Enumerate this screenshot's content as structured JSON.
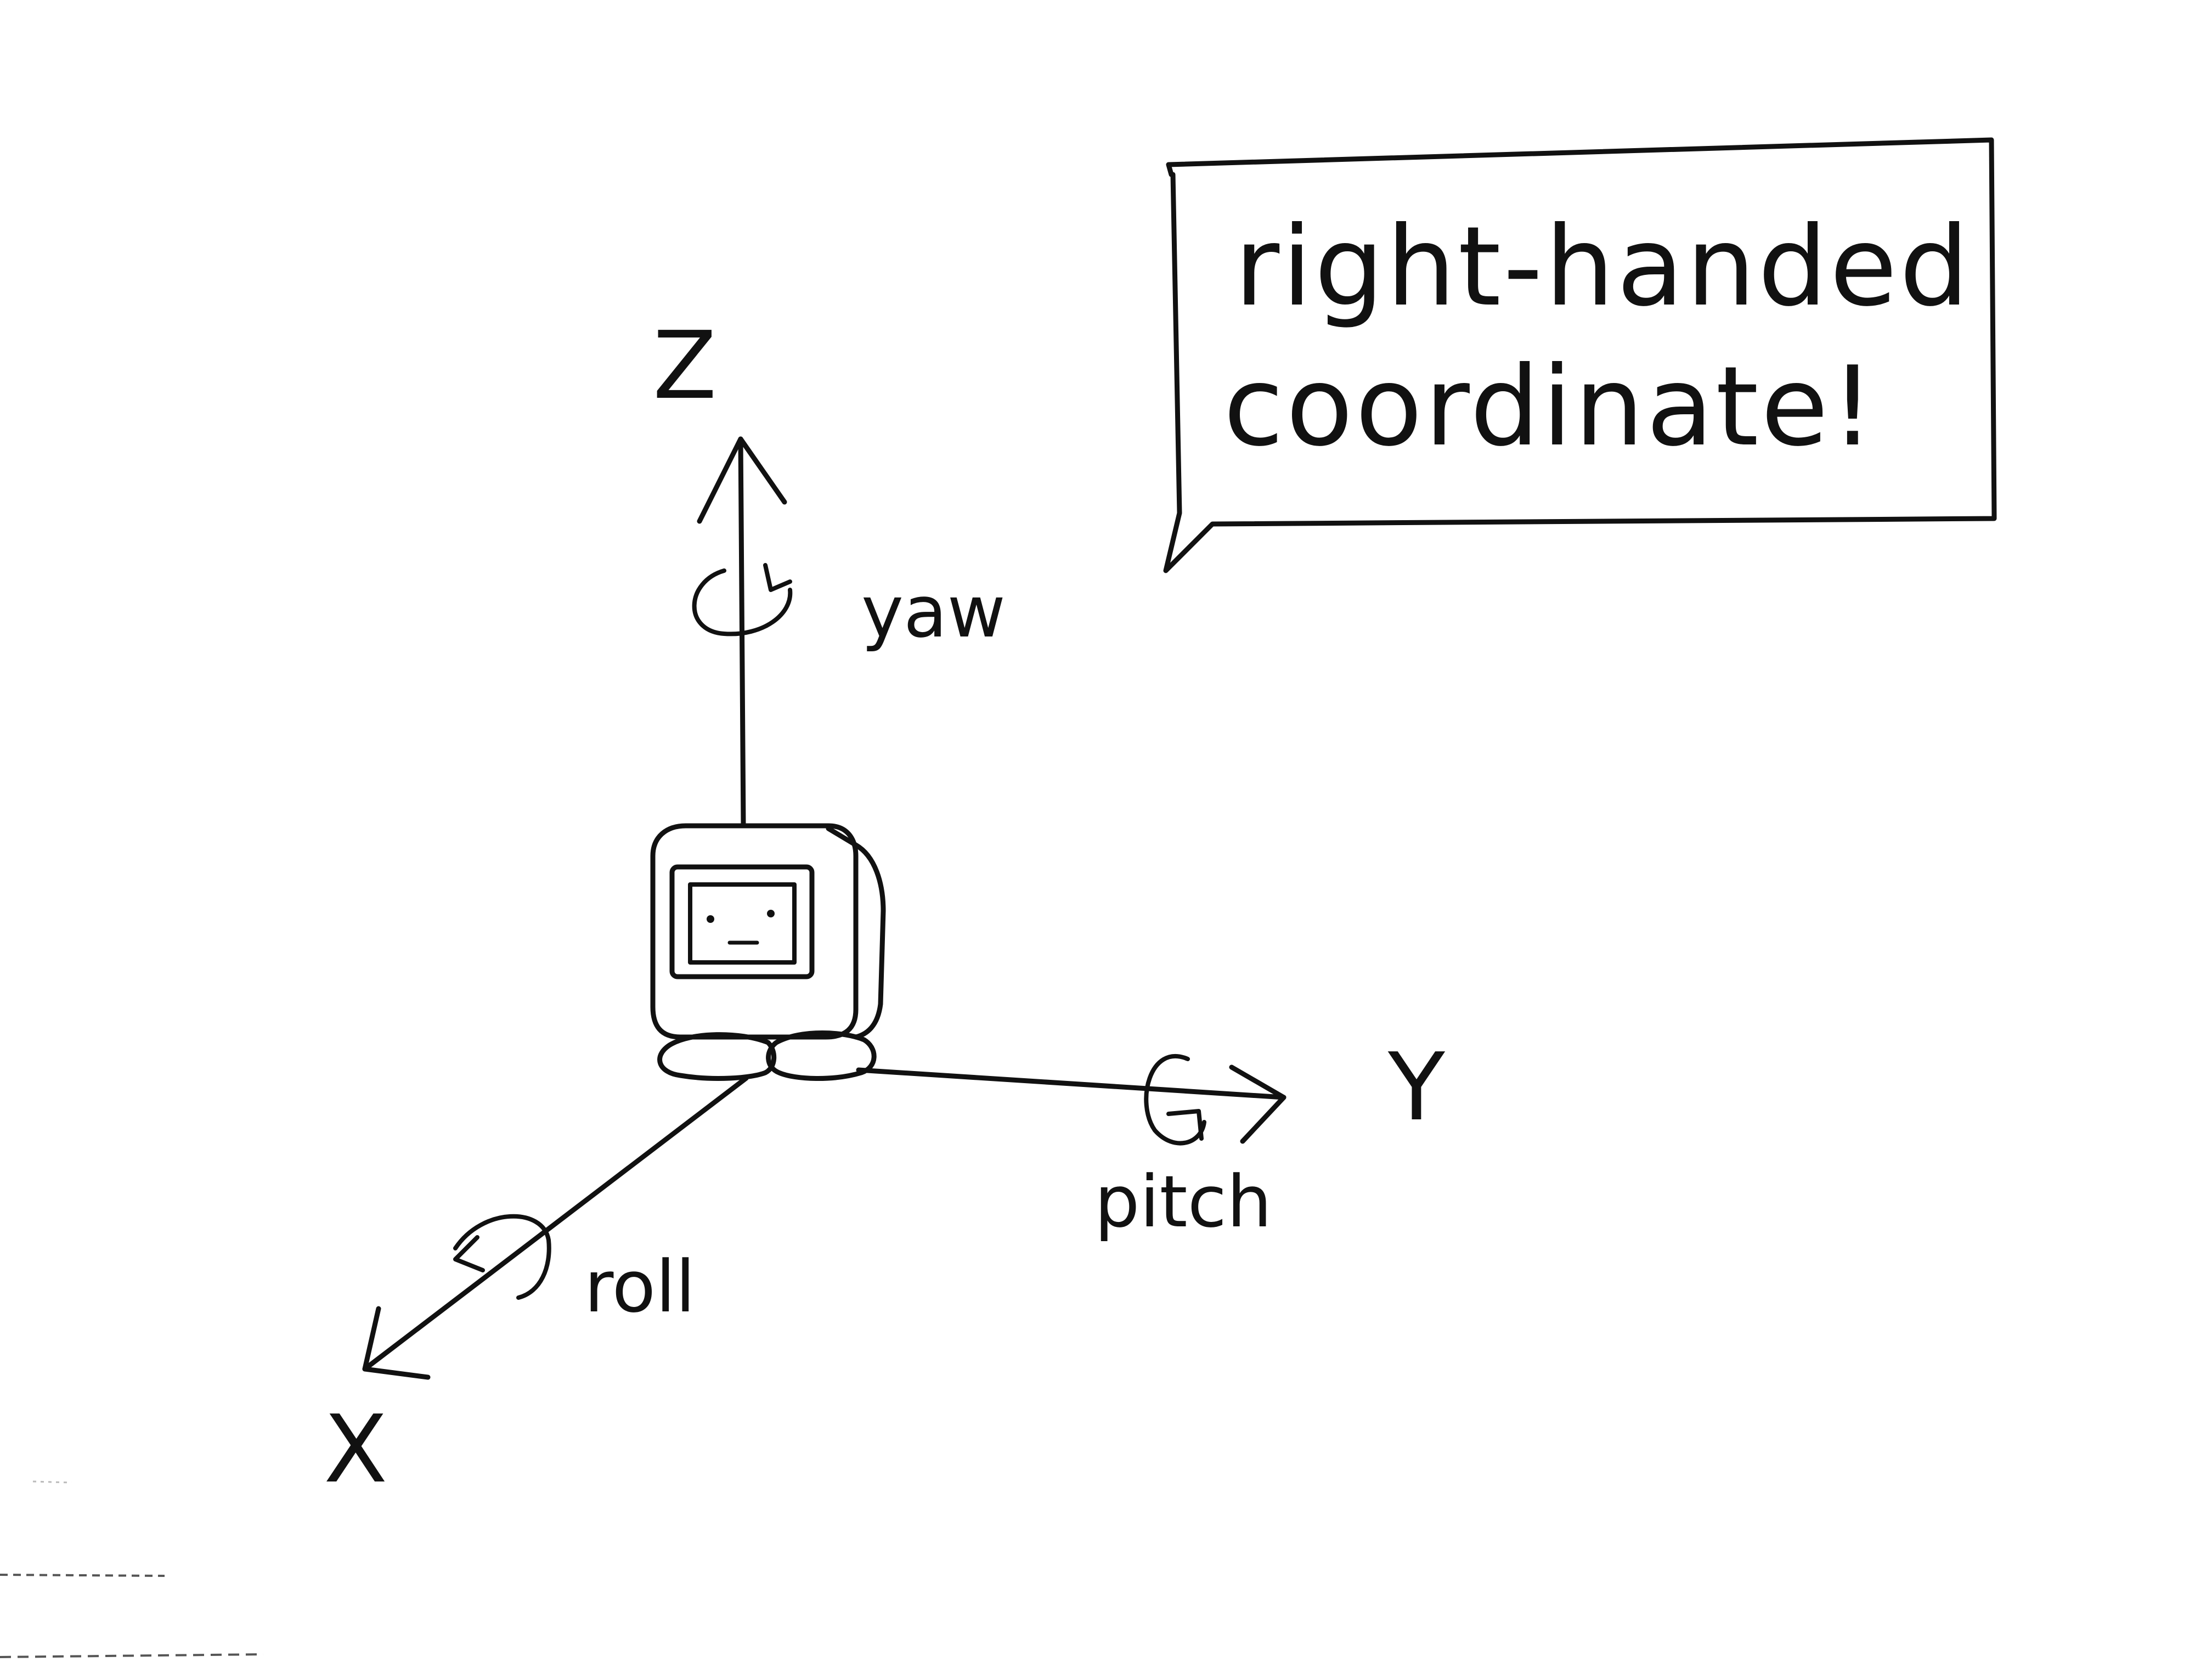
{
  "speech_bubble": {
    "line1": "right-handed",
    "line2": "coordinate!"
  },
  "axes": {
    "z": {
      "label": "Z",
      "rotation_label": "yaw"
    },
    "y": {
      "label": "Y",
      "rotation_label": "pitch"
    },
    "x": {
      "label": "X",
      "rotation_label": "roll"
    }
  },
  "colors": {
    "ink": "#111111",
    "paper": "#ffffff"
  }
}
